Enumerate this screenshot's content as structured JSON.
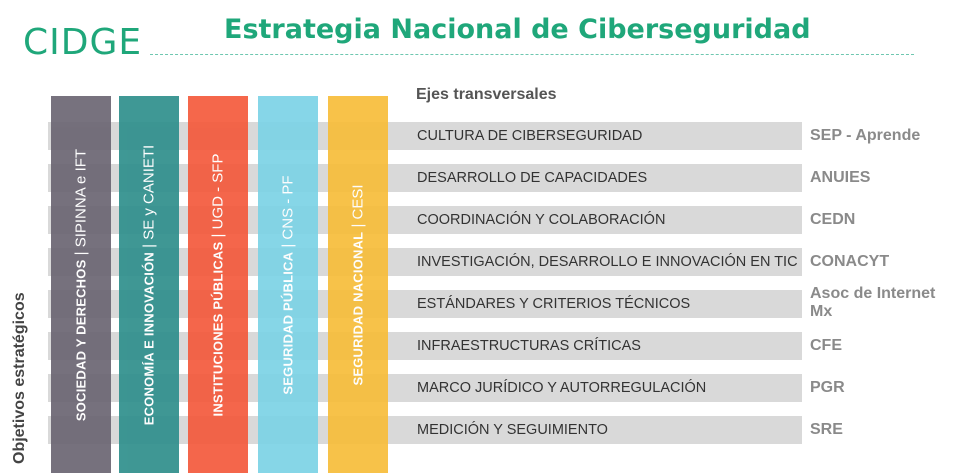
{
  "header": {
    "logo": "CIDGE",
    "title": "Estrategia Nacional de Ciberseguridad"
  },
  "axes_label": "Ejes transversales",
  "objectives_label": "Objetivos estratégicos",
  "columns": [
    {
      "bold": "SOCIEDAD Y DERECHOS",
      "rest": "SIPINNA e IFT",
      "color": "#6b6673"
    },
    {
      "bold": "ECONOMÍA E INNOVACIÓN",
      "rest": "SE  y  CANIETI",
      "color": "#2f8f8c"
    },
    {
      "bold": "INSTITUCIONES PÚBLICAS",
      "rest": "UGD - SFP",
      "color": "#f45a3c"
    },
    {
      "bold": "SEGURIDAD PÚBLICA",
      "rest": "CNS - PF",
      "color": "#7cd3e6"
    },
    {
      "bold": "SEGURIDAD NACIONAL",
      "rest": "CESI",
      "color": "#f7bd3a"
    }
  ],
  "separator": "|",
  "rows": [
    {
      "axis": "CULTURA DE CIBERSEGURIDAD",
      "entity": "SEP - Aprende"
    },
    {
      "axis": "DESARROLLO DE CAPACIDADES",
      "entity": "ANUIES"
    },
    {
      "axis": "COORDINACIÓN Y COLABORACIÓN",
      "entity": "CEDN"
    },
    {
      "axis": "INVESTIGACIÓN, DESARROLLO E INNOVACIÓN EN TIC",
      "entity": "CONACYT"
    },
    {
      "axis": "ESTÁNDARES Y CRITERIOS TÉCNICOS",
      "entity": "Asoc de Internet Mx"
    },
    {
      "axis": "INFRAESTRUCTURAS CRÍTICAS",
      "entity": "CFE"
    },
    {
      "axis": "MARCO JURÍDICO Y AUTORREGULACIÓN",
      "entity": "PGR"
    },
    {
      "axis": "MEDICIÓN Y SEGUIMIENTO",
      "entity": "SRE"
    }
  ]
}
